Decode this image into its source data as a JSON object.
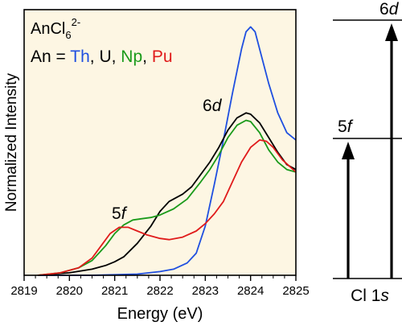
{
  "chart_data": {
    "type": "line",
    "legend": {
      "formula": {
        "base": "AnCl",
        "sub": "6",
        "sup": "2-"
      },
      "prefix": "An = ",
      "items": [
        {
          "label": "Th",
          "color": "#1f4fe0"
        },
        {
          "label": "U",
          "color": "#000000"
        },
        {
          "label": "Np",
          "color": "#1a9a1a"
        },
        {
          "label": "Pu",
          "color": "#e01b1b"
        }
      ],
      "separator": ", "
    },
    "xlabel": "Energy (eV)",
    "ylabel": "Normalized Intensity",
    "xlim": [
      2819,
      2825
    ],
    "ylim": [
      0,
      1.08
    ],
    "xticks": [
      "2819",
      "2820",
      "2821",
      "2822",
      "2823",
      "2824",
      "2825"
    ],
    "annotations": [
      {
        "num": "6",
        "italic": "d",
        "x": 2823.6,
        "y": 0.63
      },
      {
        "num": "5",
        "italic": "f",
        "x": 2821.0,
        "y": 0.2
      }
    ],
    "background": "#fdf6e3",
    "series": [
      {
        "name": "Th",
        "color": "#1f4fe0",
        "points": [
          [
            2819.3,
            0.0
          ],
          [
            2820.5,
            0.0
          ],
          [
            2821.5,
            0.005
          ],
          [
            2822.0,
            0.015
          ],
          [
            2822.3,
            0.025
          ],
          [
            2822.6,
            0.05
          ],
          [
            2822.8,
            0.09
          ],
          [
            2823.0,
            0.2
          ],
          [
            2823.2,
            0.37
          ],
          [
            2823.4,
            0.55
          ],
          [
            2823.6,
            0.74
          ],
          [
            2823.8,
            0.92
          ],
          [
            2823.9,
            0.99
          ],
          [
            2824.0,
            1.01
          ],
          [
            2824.1,
            0.99
          ],
          [
            2824.2,
            0.92
          ],
          [
            2824.4,
            0.78
          ],
          [
            2824.6,
            0.66
          ],
          [
            2824.8,
            0.58
          ],
          [
            2825.0,
            0.55
          ]
        ]
      },
      {
        "name": "U",
        "color": "#000000",
        "points": [
          [
            2819.3,
            0.0
          ],
          [
            2820.0,
            0.01
          ],
          [
            2820.5,
            0.025
          ],
          [
            2820.8,
            0.04
          ],
          [
            2821.0,
            0.055
          ],
          [
            2821.2,
            0.075
          ],
          [
            2821.5,
            0.13
          ],
          [
            2821.8,
            0.2
          ],
          [
            2822.0,
            0.26
          ],
          [
            2822.2,
            0.3
          ],
          [
            2822.5,
            0.33
          ],
          [
            2822.7,
            0.36
          ],
          [
            2822.9,
            0.41
          ],
          [
            2823.1,
            0.46
          ],
          [
            2823.3,
            0.52
          ],
          [
            2823.5,
            0.59
          ],
          [
            2823.7,
            0.64
          ],
          [
            2823.9,
            0.66
          ],
          [
            2824.0,
            0.655
          ],
          [
            2824.2,
            0.62
          ],
          [
            2824.4,
            0.56
          ],
          [
            2824.6,
            0.5
          ],
          [
            2824.8,
            0.45
          ],
          [
            2825.0,
            0.43
          ]
        ]
      },
      {
        "name": "Np",
        "color": "#1a9a1a",
        "points": [
          [
            2819.3,
            0.0
          ],
          [
            2819.8,
            0.01
          ],
          [
            2820.2,
            0.03
          ],
          [
            2820.5,
            0.06
          ],
          [
            2820.8,
            0.12
          ],
          [
            2821.0,
            0.17
          ],
          [
            2821.2,
            0.205
          ],
          [
            2821.4,
            0.225
          ],
          [
            2821.6,
            0.23
          ],
          [
            2821.8,
            0.235
          ],
          [
            2822.0,
            0.245
          ],
          [
            2822.3,
            0.27
          ],
          [
            2822.6,
            0.31
          ],
          [
            2822.9,
            0.38
          ],
          [
            2823.1,
            0.43
          ],
          [
            2823.3,
            0.49
          ],
          [
            2823.5,
            0.56
          ],
          [
            2823.7,
            0.61
          ],
          [
            2823.9,
            0.63
          ],
          [
            2824.0,
            0.625
          ],
          [
            2824.2,
            0.58
          ],
          [
            2824.4,
            0.51
          ],
          [
            2824.6,
            0.46
          ],
          [
            2824.8,
            0.43
          ],
          [
            2825.0,
            0.42
          ]
        ]
      },
      {
        "name": "Pu",
        "color": "#e01b1b",
        "points": [
          [
            2819.3,
            0.0
          ],
          [
            2819.8,
            0.01
          ],
          [
            2820.2,
            0.03
          ],
          [
            2820.5,
            0.07
          ],
          [
            2820.7,
            0.12
          ],
          [
            2820.9,
            0.17
          ],
          [
            2821.1,
            0.195
          ],
          [
            2821.3,
            0.195
          ],
          [
            2821.5,
            0.18
          ],
          [
            2821.7,
            0.165
          ],
          [
            2822.0,
            0.15
          ],
          [
            2822.2,
            0.145
          ],
          [
            2822.5,
            0.155
          ],
          [
            2822.8,
            0.18
          ],
          [
            2823.0,
            0.21
          ],
          [
            2823.2,
            0.25
          ],
          [
            2823.4,
            0.3
          ],
          [
            2823.6,
            0.38
          ],
          [
            2823.8,
            0.46
          ],
          [
            2824.0,
            0.52
          ],
          [
            2824.2,
            0.55
          ],
          [
            2824.35,
            0.545
          ],
          [
            2824.5,
            0.52
          ],
          [
            2824.7,
            0.47
          ],
          [
            2825.0,
            0.42
          ]
        ]
      }
    ]
  },
  "level_diagram": {
    "levels": [
      {
        "num": "6",
        "italic": "d"
      },
      {
        "num": "5",
        "italic": "f"
      }
    ],
    "origin": {
      "prefix": "Cl 1",
      "italic": "s"
    }
  }
}
